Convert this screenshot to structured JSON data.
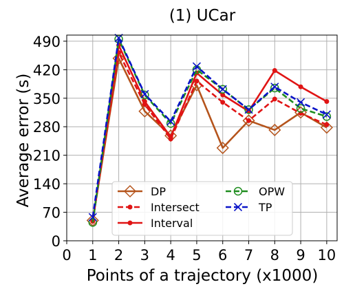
{
  "chart_data": {
    "type": "line",
    "title": "(1) UCar",
    "xlabel": "Points of a trajectory (x1000)",
    "ylabel": "Average error (s)",
    "xlim": [
      0,
      10.4
    ],
    "ylim": [
      0,
      505
    ],
    "xticks": [
      0,
      1,
      2,
      3,
      4,
      5,
      6,
      7,
      8,
      9,
      10
    ],
    "yticks": [
      0,
      70,
      140,
      210,
      280,
      350,
      420,
      490
    ],
    "grid": true,
    "legend_position": "lower-center",
    "legend_columns": 2,
    "x": [
      1,
      2,
      3,
      4,
      5,
      6,
      7,
      8,
      9,
      10
    ],
    "series": [
      {
        "name": "DP",
        "color": "#b5541c",
        "dash": "solid",
        "marker": "diamond-open",
        "values": [
          50,
          448,
          318,
          258,
          382,
          228,
          295,
          272,
          315,
          278
        ]
      },
      {
        "name": "Intersect",
        "color": "#e01414",
        "dash": "dashed",
        "marker": "dot",
        "values": [
          48,
          462,
          335,
          250,
          392,
          340,
          295,
          348,
          313,
          285
        ]
      },
      {
        "name": "Interval",
        "color": "#e01414",
        "dash": "solid",
        "marker": "dot",
        "values": [
          48,
          480,
          342,
          255,
          412,
          358,
          318,
          418,
          378,
          342
        ]
      },
      {
        "name": "OPW",
        "color": "#1e8c1e",
        "dash": "dashed",
        "marker": "circle-open",
        "values": [
          45,
          495,
          358,
          288,
          420,
          372,
          322,
          375,
          325,
          305
        ]
      },
      {
        "name": "TP",
        "color": "#0a14c8",
        "dash": "dashed",
        "marker": "x",
        "values": [
          58,
          498,
          360,
          293,
          428,
          372,
          322,
          378,
          340,
          310
        ]
      }
    ]
  }
}
